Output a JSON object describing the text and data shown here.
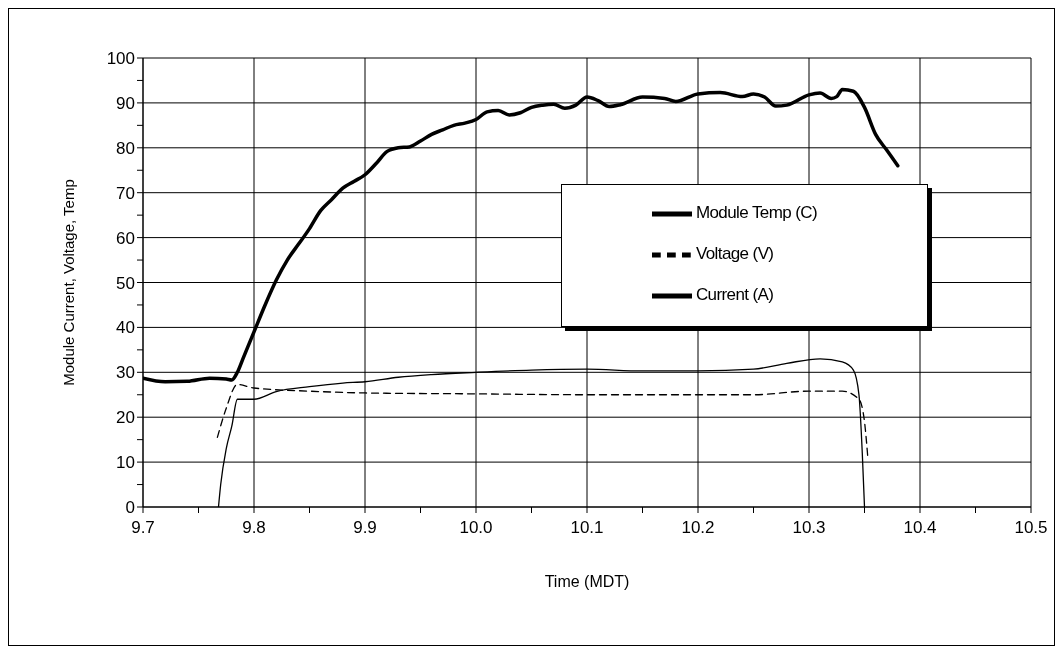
{
  "chart_data": {
    "type": "line",
    "xlabel": "Time (MDT)",
    "ylabel": "Module Current, Voltage, Temp",
    "xlim": [
      9.7,
      10.5
    ],
    "xticks": [
      9.7,
      {
        "value": 9.75,
        "label": null
      },
      9.8,
      {
        "value": 9.85,
        "label": null
      },
      9.9,
      {
        "value": 9.95,
        "label": null
      },
      {
        "value": 10.0,
        "label": "10.0"
      },
      {
        "value": 10.05,
        "label": null
      },
      10.1,
      {
        "value": 10.15,
        "label": null
      },
      10.2,
      {
        "value": 10.25,
        "label": null
      },
      10.3,
      {
        "value": 10.35,
        "label": null
      },
      10.4,
      {
        "value": 10.45,
        "label": null
      },
      10.5
    ],
    "ylim": [
      0,
      100
    ],
    "yticks": [
      0,
      {
        "value": 5,
        "label": null
      },
      10,
      {
        "value": 15,
        "label": null
      },
      20,
      {
        "value": 25,
        "label": null
      },
      30,
      {
        "value": 35,
        "label": null
      },
      40,
      {
        "value": 45,
        "label": null
      },
      50,
      {
        "value": 55,
        "label": null
      },
      60,
      {
        "value": 65,
        "label": null
      },
      70,
      {
        "value": 75,
        "label": null
      },
      80,
      {
        "value": 85,
        "label": null
      },
      90,
      {
        "value": 95,
        "label": null
      },
      100
    ],
    "grid": true,
    "legend": "right",
    "marker": "none",
    "series": [
      {
        "name": "Module Temp (C)",
        "color": "#000000",
        "line_style": "solid",
        "x": [
          9.7,
          9.72,
          9.74,
          9.76,
          9.775,
          9.78,
          9.785,
          9.79,
          9.8,
          9.81,
          9.82,
          9.83,
          9.84,
          9.85,
          9.86,
          9.87,
          9.88,
          9.89,
          9.9,
          9.91,
          9.92,
          9.93,
          9.94,
          9.95,
          9.96,
          9.97,
          9.98,
          9.99,
          10.0,
          10.01,
          10.02,
          10.03,
          10.04,
          10.05,
          10.06,
          10.07,
          10.08,
          10.09,
          10.1,
          10.11,
          10.12,
          10.13,
          10.15,
          10.17,
          10.18,
          10.2,
          10.22,
          10.24,
          10.25,
          10.26,
          10.27,
          10.28,
          10.3,
          10.31,
          10.32,
          10.325,
          10.33,
          10.34,
          10.35,
          10.36,
          10.37,
          10.38
        ],
        "values": [
          28.7,
          27.9,
          28.0,
          28.7,
          28.5,
          28.3,
          30,
          33,
          39,
          45,
          50.5,
          55,
          58.5,
          62,
          66,
          68.5,
          71,
          72.5,
          74,
          76.5,
          79.2,
          80,
          80.2,
          81.5,
          83,
          84,
          85,
          85.5,
          86.3,
          88,
          88.3,
          87.3,
          87.8,
          89,
          89.5,
          89.7,
          88.8,
          89.5,
          91.3,
          90.5,
          89.2,
          89.6,
          91.3,
          91,
          90.3,
          92,
          92.3,
          91.4,
          92,
          91.3,
          89.3,
          89.5,
          91.8,
          92.2,
          91,
          91.4,
          93,
          92.6,
          89,
          83,
          79.5,
          76
        ]
      },
      {
        "name": "Voltage (V)",
        "color": "#000000",
        "line_style": "dashed",
        "x": [
          9.767,
          9.775,
          9.785,
          9.8,
          9.85,
          9.9,
          10.0,
          10.1,
          10.2,
          10.25,
          10.3,
          10.33,
          10.345,
          10.35,
          10.353
        ],
        "values": [
          15.5,
          22,
          27.3,
          26.5,
          25.8,
          25.4,
          25.2,
          25,
          25,
          25,
          25.8,
          25.8,
          24,
          19,
          11
        ]
      },
      {
        "name": "Current (A)",
        "color": "#000000",
        "line_style": "solid",
        "x": [
          9.768,
          9.77,
          9.775,
          9.78,
          9.785,
          9.8,
          9.82,
          9.85,
          9.88,
          9.9,
          9.93,
          9.96,
          10.0,
          10.05,
          10.1,
          10.15,
          10.2,
          10.25,
          10.28,
          10.31,
          10.33,
          10.34,
          10.345,
          10.348,
          10.35
        ],
        "values": [
          0,
          5,
          13,
          18,
          24,
          24,
          25.7,
          26.8,
          27.6,
          27.9,
          28.9,
          29.5,
          30,
          30.5,
          30.7,
          30.3,
          30.3,
          30.7,
          32,
          33,
          32.3,
          30.5,
          25,
          12,
          0
        ]
      }
    ]
  }
}
